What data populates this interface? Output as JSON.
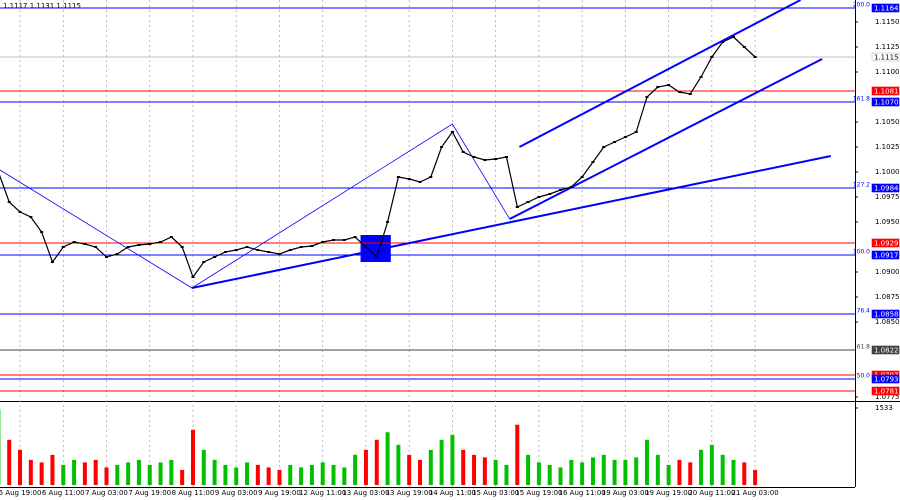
{
  "chart_data": [
    {
      "type": "line",
      "title": "1.1117 1.1131 1.1115",
      "categories": [
        null,
        null,
        "5 Aug 19:00",
        null,
        null,
        null,
        "6 Aug 11:00",
        null,
        null,
        null,
        "7 Aug 03:00",
        null,
        null,
        null,
        "7 Aug 19:00",
        null,
        null,
        null,
        "8 Aug 11:00",
        null,
        null,
        null,
        "9 Aug 03:00",
        null,
        null,
        null,
        "9 Aug 19:00",
        null,
        null,
        null,
        "12 Aug 11:00",
        null,
        null,
        null,
        "13 Aug 03:00",
        null,
        null,
        null,
        "13 Aug 19:00",
        null,
        null,
        null,
        "14 Aug 11:00",
        null,
        null,
        null,
        "15 Aug 03:00",
        null,
        null,
        null,
        "15 Aug 19:00",
        null,
        null,
        null,
        "16 Aug 11:00",
        null,
        null,
        null,
        "19 Aug 03:00",
        null,
        null,
        null,
        "19 Aug 19:00",
        null,
        null,
        null,
        "20 Aug 11:00",
        null,
        null,
        null,
        "21 Aug 03:00"
      ],
      "values": [
        1.1,
        1.097,
        1.096,
        1.0955,
        1.094,
        1.091,
        1.0925,
        1.093,
        1.0928,
        1.0925,
        1.0915,
        1.0918,
        1.0925,
        1.0927,
        1.0928,
        1.093,
        1.0935,
        1.0925,
        1.0895,
        1.091,
        1.0915,
        1.092,
        1.0922,
        1.0925,
        1.0922,
        1.092,
        1.0918,
        1.0922,
        1.0925,
        1.0926,
        1.093,
        1.0932,
        1.0932,
        1.0935,
        1.0925,
        1.0915,
        1.095,
        1.0995,
        1.0993,
        1.099,
        1.0995,
        1.1025,
        1.104,
        1.102,
        1.1015,
        1.1012,
        1.1013,
        1.1015,
        1.0965,
        1.097,
        1.0975,
        1.0978,
        1.0982,
        1.0985,
        1.0995,
        1.101,
        1.1025,
        1.103,
        1.1035,
        1.104,
        1.1075,
        1.1085,
        1.1087,
        1.108,
        1.1078,
        1.1095,
        1.1115,
        1.113,
        1.1135,
        1.1125,
        1.1115
      ],
      "color": "#000000",
      "ylim": [
        1.0772,
        1.1172
      ],
      "yticks": [
        {
          "value": 1.115,
          "label": "1.1150"
        },
        1.1125,
        {
          "value": 1.11,
          "label": "1.1100"
        },
        {
          "value": 1.105,
          "label": "1.1050"
        },
        1.1025,
        {
          "value": 1.1,
          "label": "1.1000"
        },
        1.0975,
        {
          "value": 1.095,
          "label": "1.0950"
        },
        {
          "value": 1.09,
          "label": "1.0900"
        },
        1.0875,
        {
          "value": 1.085,
          "label": "1.0850"
        },
        1.0775
      ],
      "grid": true,
      "levels": [
        {
          "value": 1.1164,
          "label": "1.1164",
          "color": "#0000ff",
          "tag": "200.0"
        },
        {
          "value": 1.1115,
          "label": "1.1115",
          "color": "#c0c0c0",
          "text_color": "#000000"
        },
        {
          "value": 1.1081,
          "label": "1.1081",
          "color": "#ff0000"
        },
        {
          "value": 1.107,
          "label": "1.1070",
          "color": "#0000ff",
          "tag": "161.8"
        },
        {
          "value": 1.0984,
          "label": "1.0984",
          "color": "#0000ff",
          "tag": "127.2"
        },
        {
          "value": 1.0929,
          "label": "1.0929",
          "color": "#ff0000"
        },
        {
          "value": 1.0917,
          "label": "1.0917",
          "color": "#0000ff",
          "tag": "100.0"
        },
        {
          "value": 1.0858,
          "label": "1.0858",
          "color": "#0000ff",
          "tag": "76.4"
        },
        {
          "value": 1.0822,
          "label": "1.0822",
          "color": "#404040",
          "tag": "61.8"
        },
        {
          "value": 1.0797,
          "label": "1.0797",
          "color": "#ff0000"
        },
        {
          "value": 1.0793,
          "label": "1.0793",
          "color": "#0000ff",
          "tag": "50.0"
        },
        {
          "value": 1.0781,
          "label": "1.0781",
          "color": "#ff0000"
        }
      ],
      "trend_lines": [
        {
          "points": [
            [
              0,
              1.1003
            ],
            [
              17.9,
              1.0884
            ],
            [
              42,
              1.1048
            ],
            [
              47.3,
              1.0953
            ]
          ],
          "color": "#0000ff",
          "width": 0.8
        },
        {
          "points": [
            [
              17.9,
              1.0884
            ],
            [
              77,
              1.1016
            ]
          ],
          "color": "#0000ff",
          "width": 2
        },
        {
          "points": [
            [
              47.3,
              1.0953
            ],
            [
              76.2,
              1.1113
            ]
          ],
          "color": "#0000ff",
          "width": 2
        },
        {
          "points": [
            [
              48.2,
              1.1025
            ],
            [
              74.2,
              1.1172
            ]
          ],
          "color": "#0000ff",
          "width": 2
        }
      ],
      "zones": [
        {
          "x": [
            33.5,
            36.3
          ],
          "y": [
            1.091,
            1.0937
          ],
          "color": "#0000ff"
        }
      ]
    },
    {
      "type": "bar",
      "values": [
        1500,
        900,
        700,
        500,
        450,
        600,
        400,
        500,
        450,
        500,
        350,
        400,
        450,
        500,
        400,
        450,
        500,
        300,
        1100,
        700,
        500,
        400,
        350,
        450,
        400,
        350,
        300,
        400,
        350,
        400,
        450,
        400,
        350,
        600,
        700,
        900,
        1050,
        800,
        600,
        500,
        700,
        900,
        1000,
        700,
        600,
        550,
        500,
        400,
        1200,
        600,
        450,
        400,
        350,
        500,
        450,
        550,
        600,
        500,
        500,
        550,
        900,
        600,
        400,
        500,
        450,
        700,
        800,
        600,
        500,
        450,
        300
      ],
      "up_color": "#00c000",
      "down_color": "#ff0000",
      "ylim": [
        0,
        1533
      ],
      "yticks": [
        1533
      ]
    }
  ]
}
